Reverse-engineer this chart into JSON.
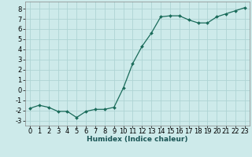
{
  "x": [
    0,
    1,
    2,
    3,
    4,
    5,
    6,
    7,
    8,
    9,
    10,
    11,
    12,
    13,
    14,
    15,
    16,
    17,
    18,
    19,
    20,
    21,
    22,
    23
  ],
  "y": [
    -1.8,
    -1.5,
    -1.7,
    -2.1,
    -2.1,
    -2.7,
    -2.1,
    -1.9,
    -1.9,
    -1.7,
    0.2,
    2.6,
    4.3,
    5.6,
    7.2,
    7.3,
    7.3,
    6.9,
    6.6,
    6.6,
    7.2,
    7.5,
    7.8,
    8.1
  ],
  "line_color": "#1a6b5a",
  "marker": "D",
  "marker_size": 2.0,
  "bg_color": "#cdeaea",
  "grid_color": "#aed4d4",
  "xlabel": "Humidex (Indice chaleur)",
  "xlim": [
    -0.5,
    23.5
  ],
  "ylim": [
    -3.5,
    8.7
  ],
  "yticks": [
    -3,
    -2,
    -1,
    0,
    1,
    2,
    3,
    4,
    5,
    6,
    7,
    8
  ],
  "xticks": [
    0,
    1,
    2,
    3,
    4,
    5,
    6,
    7,
    8,
    9,
    10,
    11,
    12,
    13,
    14,
    15,
    16,
    17,
    18,
    19,
    20,
    21,
    22,
    23
  ],
  "xlabel_fontsize": 6.5,
  "tick_fontsize": 6.0,
  "linewidth": 0.9
}
